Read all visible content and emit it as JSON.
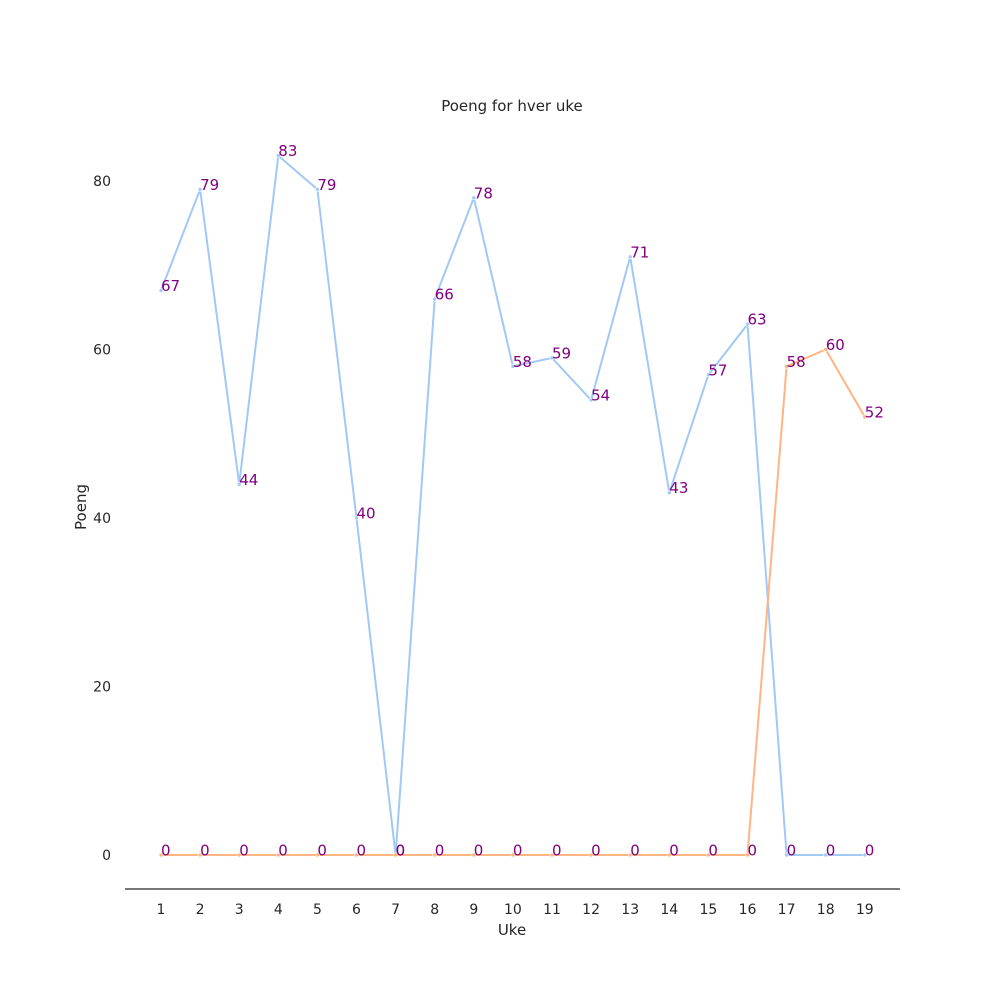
{
  "chart_data": {
    "type": "line",
    "title": "Poeng for hver uke",
    "xlabel": "Uke",
    "ylabel": "Poeng",
    "categories": [
      "1",
      "2",
      "3",
      "4",
      "5",
      "6",
      "7",
      "8",
      "9",
      "10",
      "11",
      "12",
      "13",
      "14",
      "15",
      "16",
      "17",
      "18",
      "19"
    ],
    "ylim": [
      -4,
      88
    ],
    "yticks": [
      0,
      20,
      40,
      60,
      80
    ],
    "grid": false,
    "series": [
      {
        "color": "#a1c9f4",
        "values": [
          67,
          79,
          44,
          83,
          79,
          40,
          0,
          66,
          78,
          58,
          59,
          54,
          71,
          43,
          57,
          63,
          0,
          0,
          0
        ]
      },
      {
        "color": "#ffb482",
        "values": [
          0,
          0,
          0,
          0,
          0,
          0,
          0,
          0,
          0,
          0,
          0,
          0,
          0,
          0,
          0,
          0,
          58,
          60,
          52
        ]
      }
    ],
    "data_label_color": "#800080"
  }
}
